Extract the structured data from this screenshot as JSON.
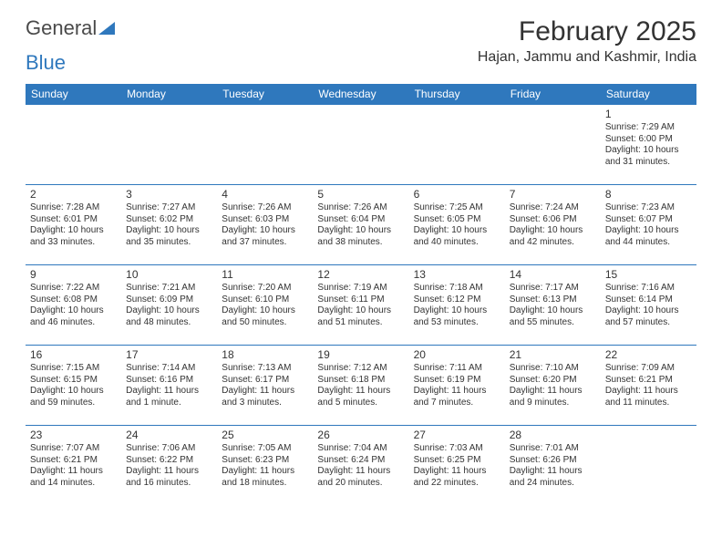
{
  "logo": {
    "word1": "General",
    "word2": "Blue"
  },
  "title": "February 2025",
  "location": "Hajan, Jammu and Kashmir, India",
  "colors": {
    "header_bg": "#2f78bd",
    "header_text": "#ffffff",
    "border": "#2f78bd",
    "body_text": "#333333",
    "logo_gray": "#4a4a4a",
    "logo_blue": "#2f78bd",
    "page_bg": "#ffffff"
  },
  "dayHeaders": [
    "Sunday",
    "Monday",
    "Tuesday",
    "Wednesday",
    "Thursday",
    "Friday",
    "Saturday"
  ],
  "weeks": [
    [
      null,
      null,
      null,
      null,
      null,
      null,
      {
        "d": "1",
        "sr": "7:29 AM",
        "ss": "6:00 PM",
        "dl": "10 hours and 31 minutes."
      }
    ],
    [
      {
        "d": "2",
        "sr": "7:28 AM",
        "ss": "6:01 PM",
        "dl": "10 hours and 33 minutes."
      },
      {
        "d": "3",
        "sr": "7:27 AM",
        "ss": "6:02 PM",
        "dl": "10 hours and 35 minutes."
      },
      {
        "d": "4",
        "sr": "7:26 AM",
        "ss": "6:03 PM",
        "dl": "10 hours and 37 minutes."
      },
      {
        "d": "5",
        "sr": "7:26 AM",
        "ss": "6:04 PM",
        "dl": "10 hours and 38 minutes."
      },
      {
        "d": "6",
        "sr": "7:25 AM",
        "ss": "6:05 PM",
        "dl": "10 hours and 40 minutes."
      },
      {
        "d": "7",
        "sr": "7:24 AM",
        "ss": "6:06 PM",
        "dl": "10 hours and 42 minutes."
      },
      {
        "d": "8",
        "sr": "7:23 AM",
        "ss": "6:07 PM",
        "dl": "10 hours and 44 minutes."
      }
    ],
    [
      {
        "d": "9",
        "sr": "7:22 AM",
        "ss": "6:08 PM",
        "dl": "10 hours and 46 minutes."
      },
      {
        "d": "10",
        "sr": "7:21 AM",
        "ss": "6:09 PM",
        "dl": "10 hours and 48 minutes."
      },
      {
        "d": "11",
        "sr": "7:20 AM",
        "ss": "6:10 PM",
        "dl": "10 hours and 50 minutes."
      },
      {
        "d": "12",
        "sr": "7:19 AM",
        "ss": "6:11 PM",
        "dl": "10 hours and 51 minutes."
      },
      {
        "d": "13",
        "sr": "7:18 AM",
        "ss": "6:12 PM",
        "dl": "10 hours and 53 minutes."
      },
      {
        "d": "14",
        "sr": "7:17 AM",
        "ss": "6:13 PM",
        "dl": "10 hours and 55 minutes."
      },
      {
        "d": "15",
        "sr": "7:16 AM",
        "ss": "6:14 PM",
        "dl": "10 hours and 57 minutes."
      }
    ],
    [
      {
        "d": "16",
        "sr": "7:15 AM",
        "ss": "6:15 PM",
        "dl": "10 hours and 59 minutes."
      },
      {
        "d": "17",
        "sr": "7:14 AM",
        "ss": "6:16 PM",
        "dl": "11 hours and 1 minute."
      },
      {
        "d": "18",
        "sr": "7:13 AM",
        "ss": "6:17 PM",
        "dl": "11 hours and 3 minutes."
      },
      {
        "d": "19",
        "sr": "7:12 AM",
        "ss": "6:18 PM",
        "dl": "11 hours and 5 minutes."
      },
      {
        "d": "20",
        "sr": "7:11 AM",
        "ss": "6:19 PM",
        "dl": "11 hours and 7 minutes."
      },
      {
        "d": "21",
        "sr": "7:10 AM",
        "ss": "6:20 PM",
        "dl": "11 hours and 9 minutes."
      },
      {
        "d": "22",
        "sr": "7:09 AM",
        "ss": "6:21 PM",
        "dl": "11 hours and 11 minutes."
      }
    ],
    [
      {
        "d": "23",
        "sr": "7:07 AM",
        "ss": "6:21 PM",
        "dl": "11 hours and 14 minutes."
      },
      {
        "d": "24",
        "sr": "7:06 AM",
        "ss": "6:22 PM",
        "dl": "11 hours and 16 minutes."
      },
      {
        "d": "25",
        "sr": "7:05 AM",
        "ss": "6:23 PM",
        "dl": "11 hours and 18 minutes."
      },
      {
        "d": "26",
        "sr": "7:04 AM",
        "ss": "6:24 PM",
        "dl": "11 hours and 20 minutes."
      },
      {
        "d": "27",
        "sr": "7:03 AM",
        "ss": "6:25 PM",
        "dl": "11 hours and 22 minutes."
      },
      {
        "d": "28",
        "sr": "7:01 AM",
        "ss": "6:26 PM",
        "dl": "11 hours and 24 minutes."
      },
      null
    ]
  ],
  "labels": {
    "sunrise": "Sunrise: ",
    "sunset": "Sunset: ",
    "daylight": "Daylight: "
  }
}
